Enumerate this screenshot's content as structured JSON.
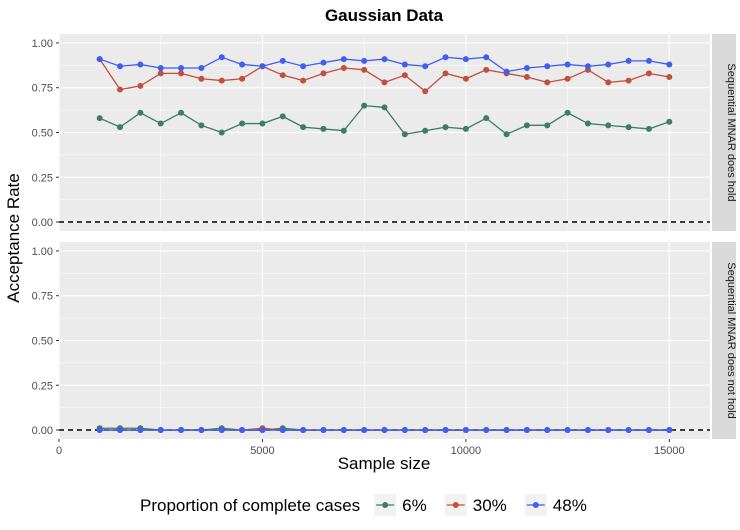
{
  "chart_data": {
    "type": "line",
    "title": "Gaussian Data",
    "xlabel": "Sample size",
    "ylabel": "Acceptance Rate",
    "xlim": [
      0,
      16000
    ],
    "ylim": [
      -0.05,
      1.05
    ],
    "x_ticks": [
      0,
      5000,
      10000,
      15000
    ],
    "y_ticks": [
      0.0,
      0.25,
      0.5,
      0.75,
      1.0
    ],
    "y_tick_labels": [
      "0.00",
      "0.25",
      "0.50",
      "0.75",
      "1.00"
    ],
    "reference_line": 0,
    "grid": true,
    "legend": {
      "title": "Proportion of complete cases",
      "position": "bottom"
    },
    "x": [
      1000,
      1500,
      2000,
      2500,
      3000,
      3500,
      4000,
      4500,
      5000,
      5500,
      6000,
      6500,
      7000,
      7500,
      8000,
      8500,
      9000,
      9500,
      10000,
      10500,
      11000,
      11500,
      12000,
      12500,
      13000,
      13500,
      14000,
      14500,
      15000
    ],
    "series_styles": [
      {
        "name": "6%",
        "color": "#3b7d66"
      },
      {
        "name": "30%",
        "color": "#c1503d"
      },
      {
        "name": "48%",
        "color": "#3f5ff0"
      }
    ],
    "panels": [
      {
        "strip": "Sequential MNAR does hold",
        "series": [
          {
            "name": "6%",
            "values": [
              0.58,
              0.53,
              0.61,
              0.55,
              0.61,
              0.54,
              0.5,
              0.55,
              0.55,
              0.59,
              0.53,
              0.52,
              0.51,
              0.65,
              0.64,
              0.49,
              0.51,
              0.53,
              0.52,
              0.58,
              0.49,
              0.54,
              0.54,
              0.61,
              0.55,
              0.54,
              0.53,
              0.52,
              0.56
            ]
          },
          {
            "name": "30%",
            "values": [
              0.91,
              0.74,
              0.76,
              0.83,
              0.83,
              0.8,
              0.79,
              0.8,
              0.87,
              0.82,
              0.79,
              0.83,
              0.86,
              0.85,
              0.78,
              0.82,
              0.73,
              0.83,
              0.8,
              0.85,
              0.83,
              0.81,
              0.78,
              0.8,
              0.85,
              0.78,
              0.79,
              0.83,
              0.81
            ]
          },
          {
            "name": "48%",
            "values": [
              0.91,
              0.87,
              0.88,
              0.86,
              0.86,
              0.86,
              0.92,
              0.88,
              0.87,
              0.9,
              0.87,
              0.89,
              0.91,
              0.9,
              0.91,
              0.88,
              0.87,
              0.92,
              0.91,
              0.92,
              0.84,
              0.86,
              0.87,
              0.88,
              0.87,
              0.88,
              0.9,
              0.9,
              0.88
            ]
          }
        ]
      },
      {
        "strip": "Sequential MNAR does not hold",
        "series": [
          {
            "name": "6%",
            "values": [
              0.01,
              0.01,
              0.01,
              0.0,
              0.0,
              0.0,
              0.01,
              0.0,
              0.0,
              0.01,
              0.0,
              0.0,
              0.0,
              0.0,
              0.0,
              0.0,
              0.0,
              0.0,
              0.0,
              0.0,
              0.0,
              0.0,
              0.0,
              0.0,
              0.0,
              0.0,
              0.0,
              0.0,
              0.0
            ]
          },
          {
            "name": "30%",
            "values": [
              0.0,
              0.0,
              0.0,
              0.0,
              0.0,
              0.0,
              0.0,
              0.0,
              0.01,
              0.0,
              0.0,
              0.0,
              0.0,
              0.0,
              0.0,
              0.0,
              0.0,
              0.0,
              0.0,
              0.0,
              0.0,
              0.0,
              0.0,
              0.0,
              0.0,
              0.0,
              0.0,
              0.0,
              0.0
            ]
          },
          {
            "name": "48%",
            "values": [
              0.0,
              0.0,
              0.0,
              0.0,
              0.0,
              0.0,
              0.0,
              0.0,
              0.0,
              0.0,
              0.0,
              0.0,
              0.0,
              0.0,
              0.0,
              0.0,
              0.0,
              0.0,
              0.0,
              0.0,
              0.0,
              0.0,
              0.0,
              0.0,
              0.0,
              0.0,
              0.0,
              0.0,
              0.0
            ]
          }
        ]
      }
    ]
  }
}
